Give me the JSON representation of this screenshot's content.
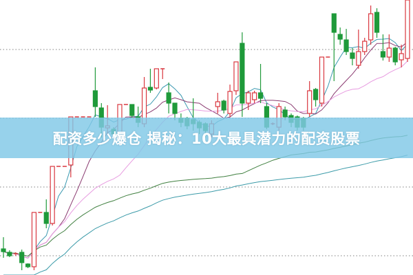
{
  "banner": {
    "title": "配资多少爆仓 揭秘：10大最具潜力的配资股票"
  },
  "chart_data": {
    "type": "candlestick",
    "title": "",
    "xlabel": "",
    "ylabel": "",
    "ylim": [
      0,
      400
    ],
    "grid": {
      "horizontal_dotted": true,
      "levels": [
        28,
        128,
        228,
        328
      ]
    },
    "colors": {
      "up": "#d9363e",
      "down": "#1f9a3a",
      "grid": "#999999"
    },
    "candles": [
      [
        38,
        34,
        55,
        25
      ],
      [
        33,
        28,
        36,
        26
      ],
      [
        30,
        31,
        33,
        28
      ],
      [
        33,
        18,
        37,
        7
      ],
      [
        16,
        12,
        17,
        10
      ],
      [
        12,
        91,
        91,
        7
      ],
      [
        91,
        91,
        91,
        91
      ],
      [
        91,
        75,
        110,
        68
      ],
      [
        75,
        158,
        158,
        72
      ],
      [
        158,
        158,
        158,
        158
      ],
      [
        158,
        158,
        158,
        158
      ],
      [
        160,
        230,
        230,
        142
      ],
      [
        230,
        230,
        230,
        230
      ],
      [
        230,
        230,
        230,
        230
      ],
      [
        230,
        230,
        230,
        230
      ],
      [
        268,
        245,
        302,
        230
      ],
      [
        243,
        215,
        250,
        200
      ],
      [
        214,
        217,
        247,
        205
      ],
      [
        212,
        205,
        215,
        200
      ],
      [
        200,
        248,
        248,
        195
      ],
      [
        248,
        248,
        248,
        248
      ],
      [
        248,
        232,
        248,
        228
      ],
      [
        230,
        222,
        245,
        215
      ],
      [
        220,
        272,
        288,
        215
      ],
      [
        273,
        269,
        300,
        265
      ],
      [
        272,
        300,
        300,
        270
      ],
      [
        300,
        300,
        300,
        285
      ],
      [
        265,
        250,
        280,
        235
      ],
      [
        250,
        235,
        250,
        225
      ],
      [
        228,
        222,
        235,
        215
      ],
      [
        228,
        217,
        230,
        212
      ],
      [
        226,
        220,
        257,
        210
      ],
      [
        222,
        214,
        225,
        205
      ],
      [
        220,
        210,
        222,
        200
      ],
      [
        205,
        220,
        225,
        200
      ],
      [
        245,
        252,
        265,
        235
      ],
      [
        253,
        240,
        255,
        235
      ],
      [
        235,
        267,
        277,
        230
      ],
      [
        268,
        310,
        310,
        262
      ],
      [
        337,
        250,
        353,
        230
      ],
      [
        250,
        265,
        268,
        240
      ],
      [
        255,
        265,
        268,
        250
      ],
      [
        265,
        257,
        307,
        250
      ],
      [
        245,
        215,
        250,
        212
      ],
      [
        220,
        220,
        222,
        218
      ],
      [
        215,
        245,
        250,
        210
      ],
      [
        240,
        230,
        245,
        225
      ],
      [
        232,
        222,
        235,
        215
      ],
      [
        230,
        215,
        232,
        210
      ],
      [
        228,
        215,
        230,
        210
      ],
      [
        235,
        268,
        282,
        230
      ],
      [
        270,
        255,
        272,
        245
      ],
      [
        250,
        317,
        317,
        245
      ],
      [
        317,
        317,
        317,
        317
      ],
      [
        380,
        353,
        380,
        282
      ],
      [
        350,
        343,
        360,
        335
      ],
      [
        342,
        325,
        358,
        320
      ],
      [
        323,
        315,
        330,
        305
      ],
      [
        305,
        325,
        357,
        300
      ],
      [
        325,
        340,
        345,
        320
      ],
      [
        342,
        380,
        392,
        335
      ],
      [
        382,
        353,
        388,
        345
      ],
      [
        325,
        317,
        350,
        312
      ],
      [
        317,
        330,
        350,
        310
      ],
      [
        330,
        310,
        332,
        305
      ],
      [
        313,
        322,
        335,
        302
      ],
      [
        315,
        400,
        400,
        310
      ]
    ],
    "moving_averages": [
      {
        "period": 5,
        "color": "#3a98b0"
      },
      {
        "period": 10,
        "color": "#8a3a70"
      },
      {
        "period": 20,
        "color": "#e79be0"
      },
      {
        "period": 40,
        "color": "#3f7f3f"
      },
      {
        "period": 90,
        "color": "#3a9aa8"
      }
    ]
  }
}
